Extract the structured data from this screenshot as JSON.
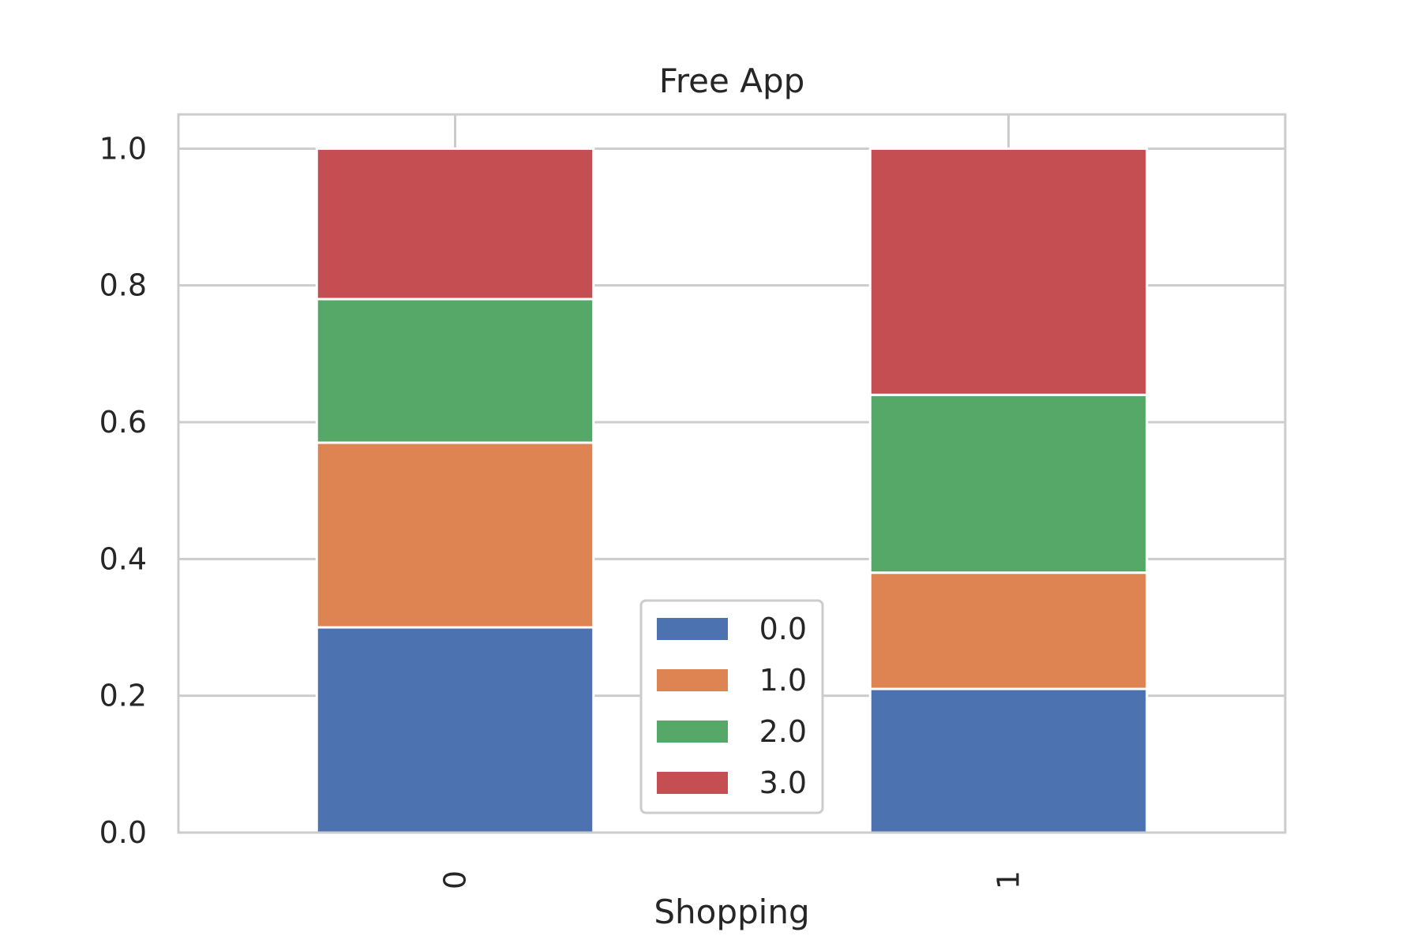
{
  "chart_data": {
    "type": "bar",
    "stacked": true,
    "title": "Free App",
    "xlabel": "Shopping",
    "ylabel": "",
    "categories": [
      "0",
      "1"
    ],
    "series": [
      {
        "name": "0.0",
        "color": "#4c72b0",
        "values": [
          0.3,
          0.21
        ]
      },
      {
        "name": "1.0",
        "color": "#dd8452",
        "values": [
          0.27,
          0.17
        ]
      },
      {
        "name": "2.0",
        "color": "#55a868",
        "values": [
          0.21,
          0.26
        ]
      },
      {
        "name": "3.0",
        "color": "#c44e52",
        "values": [
          0.22,
          0.36
        ]
      }
    ],
    "ylim": [
      0,
      1.05
    ],
    "yticks": [
      "0.0",
      "0.2",
      "0.4",
      "0.6",
      "0.8",
      "1.0"
    ],
    "grid": true,
    "legend_position": "bottom-center",
    "x_tick_rotation": "vertical"
  }
}
